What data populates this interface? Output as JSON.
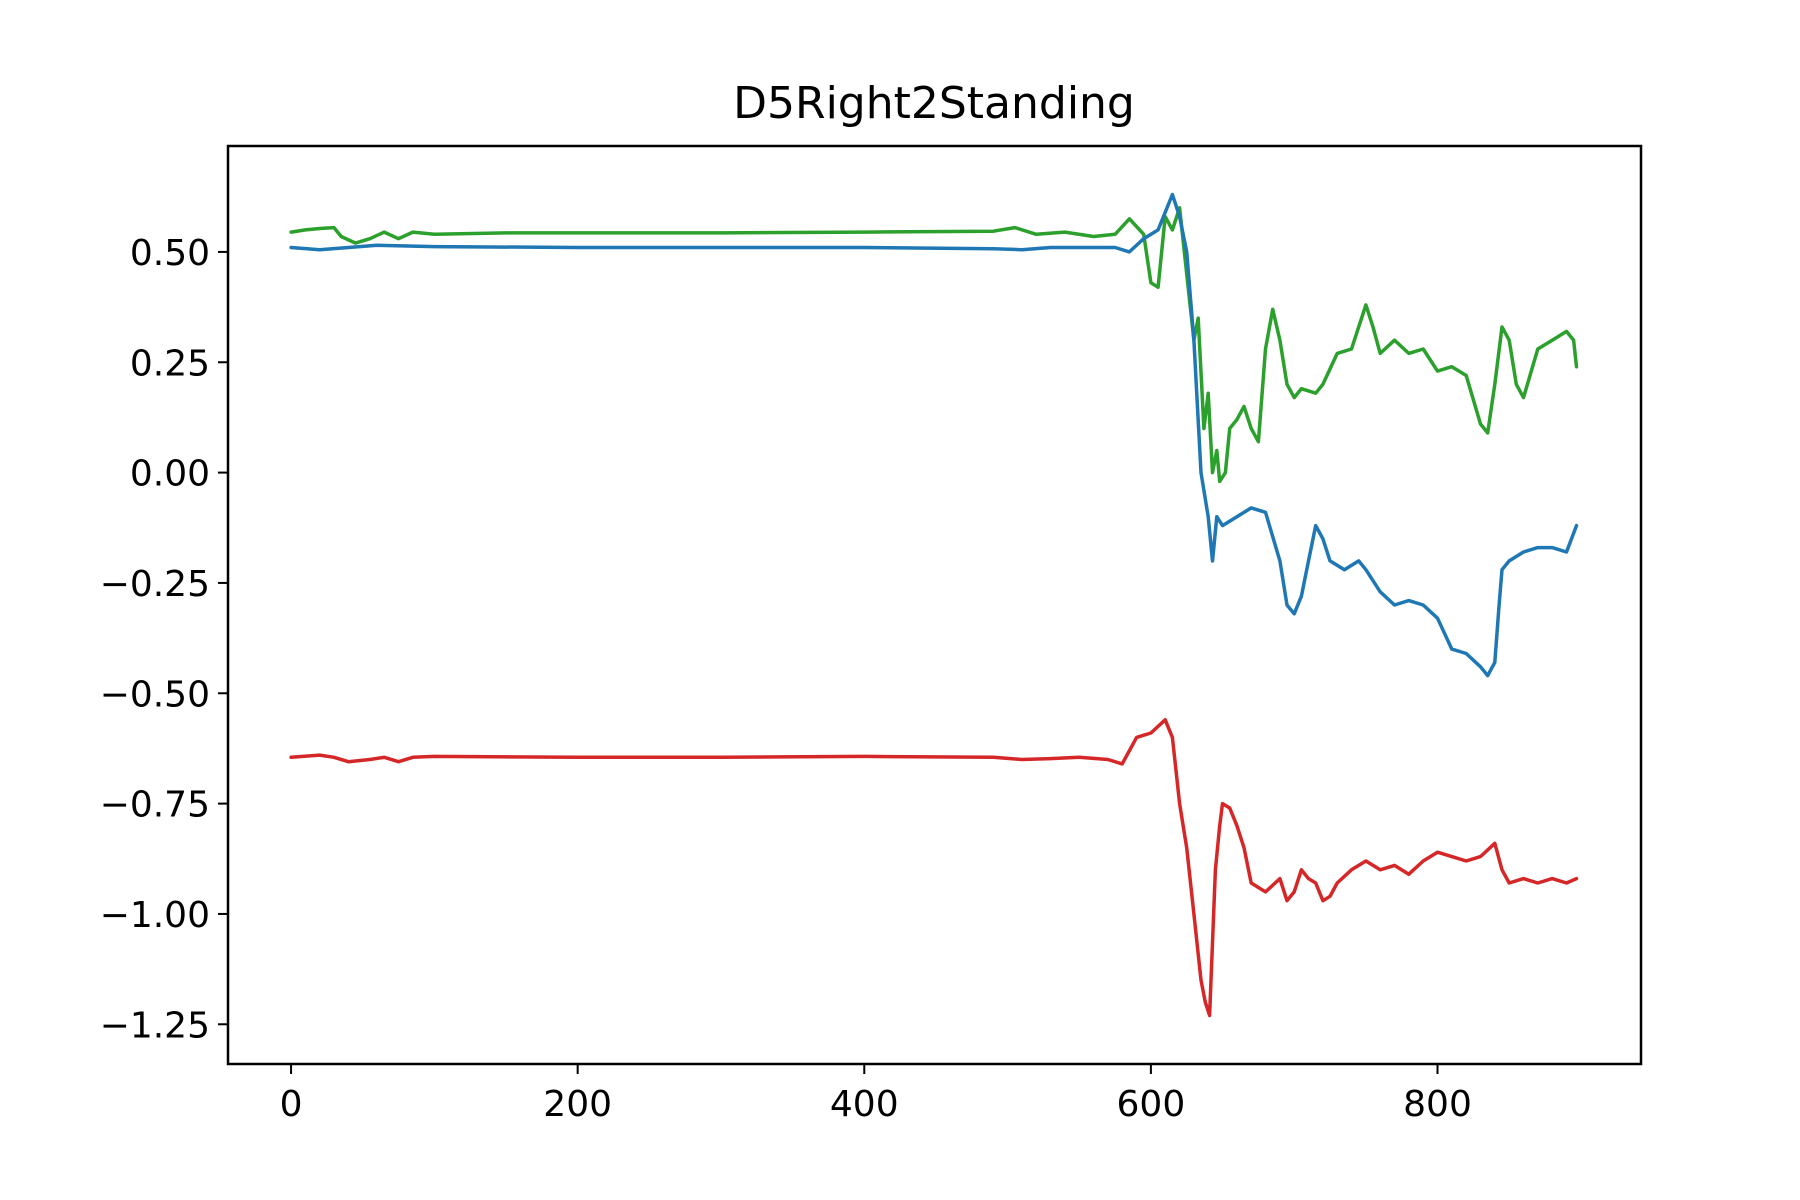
{
  "chart_data": {
    "type": "line",
    "title": "D5Right2Standing",
    "xlabel": "",
    "ylabel": "",
    "xlim": [
      -44,
      942
    ],
    "ylim": [
      -1.34,
      0.74
    ],
    "grid": false,
    "legend": "none",
    "x_ticks": [
      0,
      200,
      400,
      600,
      800
    ],
    "x_tick_labels": [
      "0",
      "200",
      "400",
      "600",
      "800"
    ],
    "y_ticks": [
      0.5,
      0.25,
      0.0,
      -0.25,
      -0.5,
      -0.75,
      -1.0,
      -1.25
    ],
    "y_tick_labels": [
      "0.50",
      "0.25",
      "0.00",
      "−0.25",
      "−0.50",
      "−0.75",
      "−1.00",
      "−1.25"
    ],
    "series": [
      {
        "color": "#2ca02c",
        "points": [
          [
            0,
            0.545
          ],
          [
            10,
            0.55
          ],
          [
            20,
            0.553
          ],
          [
            30,
            0.555
          ],
          [
            35,
            0.535
          ],
          [
            45,
            0.52
          ],
          [
            55,
            0.53
          ],
          [
            65,
            0.545
          ],
          [
            75,
            0.53
          ],
          [
            85,
            0.545
          ],
          [
            100,
            0.54
          ],
          [
            150,
            0.543
          ],
          [
            200,
            0.543
          ],
          [
            300,
            0.543
          ],
          [
            400,
            0.545
          ],
          [
            490,
            0.547
          ],
          [
            505,
            0.555
          ],
          [
            520,
            0.54
          ],
          [
            540,
            0.545
          ],
          [
            560,
            0.535
          ],
          [
            575,
            0.54
          ],
          [
            585,
            0.575
          ],
          [
            595,
            0.54
          ],
          [
            600,
            0.43
          ],
          [
            605,
            0.42
          ],
          [
            610,
            0.58
          ],
          [
            615,
            0.55
          ],
          [
            620,
            0.6
          ],
          [
            625,
            0.45
          ],
          [
            630,
            0.3
          ],
          [
            633,
            0.35
          ],
          [
            637,
            0.1
          ],
          [
            640,
            0.18
          ],
          [
            643,
            0.0
          ],
          [
            646,
            0.05
          ],
          [
            648,
            -0.02
          ],
          [
            652,
            0.0
          ],
          [
            655,
            0.1
          ],
          [
            660,
            0.12
          ],
          [
            665,
            0.15
          ],
          [
            670,
            0.1
          ],
          [
            675,
            0.07
          ],
          [
            680,
            0.28
          ],
          [
            685,
            0.37
          ],
          [
            690,
            0.3
          ],
          [
            695,
            0.2
          ],
          [
            700,
            0.17
          ],
          [
            705,
            0.19
          ],
          [
            715,
            0.18
          ],
          [
            720,
            0.2
          ],
          [
            730,
            0.27
          ],
          [
            740,
            0.28
          ],
          [
            750,
            0.38
          ],
          [
            755,
            0.33
          ],
          [
            760,
            0.27
          ],
          [
            770,
            0.3
          ],
          [
            780,
            0.27
          ],
          [
            790,
            0.28
          ],
          [
            800,
            0.23
          ],
          [
            810,
            0.24
          ],
          [
            820,
            0.22
          ],
          [
            830,
            0.11
          ],
          [
            835,
            0.09
          ],
          [
            840,
            0.2
          ],
          [
            845,
            0.33
          ],
          [
            850,
            0.3
          ],
          [
            855,
            0.2
          ],
          [
            860,
            0.17
          ],
          [
            870,
            0.28
          ],
          [
            880,
            0.3
          ],
          [
            890,
            0.32
          ],
          [
            895,
            0.3
          ],
          [
            897,
            0.24
          ]
        ]
      },
      {
        "color": "#1f77b4",
        "points": [
          [
            0,
            0.51
          ],
          [
            20,
            0.505
          ],
          [
            40,
            0.51
          ],
          [
            60,
            0.515
          ],
          [
            100,
            0.512
          ],
          [
            200,
            0.51
          ],
          [
            300,
            0.51
          ],
          [
            400,
            0.51
          ],
          [
            490,
            0.507
          ],
          [
            510,
            0.505
          ],
          [
            530,
            0.51
          ],
          [
            550,
            0.51
          ],
          [
            575,
            0.51
          ],
          [
            585,
            0.5
          ],
          [
            595,
            0.53
          ],
          [
            605,
            0.55
          ],
          [
            615,
            0.63
          ],
          [
            620,
            0.58
          ],
          [
            625,
            0.5
          ],
          [
            630,
            0.3
          ],
          [
            635,
            0.0
          ],
          [
            640,
            -0.1
          ],
          [
            643,
            -0.2
          ],
          [
            646,
            -0.1
          ],
          [
            650,
            -0.12
          ],
          [
            660,
            -0.1
          ],
          [
            670,
            -0.08
          ],
          [
            680,
            -0.09
          ],
          [
            690,
            -0.2
          ],
          [
            695,
            -0.3
          ],
          [
            700,
            -0.32
          ],
          [
            705,
            -0.28
          ],
          [
            710,
            -0.2
          ],
          [
            715,
            -0.12
          ],
          [
            720,
            -0.15
          ],
          [
            725,
            -0.2
          ],
          [
            735,
            -0.22
          ],
          [
            745,
            -0.2
          ],
          [
            750,
            -0.22
          ],
          [
            760,
            -0.27
          ],
          [
            770,
            -0.3
          ],
          [
            780,
            -0.29
          ],
          [
            790,
            -0.3
          ],
          [
            800,
            -0.33
          ],
          [
            810,
            -0.4
          ],
          [
            820,
            -0.41
          ],
          [
            830,
            -0.44
          ],
          [
            835,
            -0.46
          ],
          [
            840,
            -0.43
          ],
          [
            843,
            -0.3
          ],
          [
            845,
            -0.22
          ],
          [
            850,
            -0.2
          ],
          [
            860,
            -0.18
          ],
          [
            870,
            -0.17
          ],
          [
            880,
            -0.17
          ],
          [
            890,
            -0.18
          ],
          [
            897,
            -0.12
          ]
        ]
      },
      {
        "color": "#d62728",
        "points": [
          [
            0,
            -0.645
          ],
          [
            20,
            -0.64
          ],
          [
            30,
            -0.645
          ],
          [
            40,
            -0.655
          ],
          [
            55,
            -0.65
          ],
          [
            65,
            -0.645
          ],
          [
            75,
            -0.655
          ],
          [
            85,
            -0.645
          ],
          [
            100,
            -0.643
          ],
          [
            200,
            -0.645
          ],
          [
            300,
            -0.645
          ],
          [
            400,
            -0.643
          ],
          [
            490,
            -0.645
          ],
          [
            510,
            -0.65
          ],
          [
            530,
            -0.648
          ],
          [
            550,
            -0.645
          ],
          [
            570,
            -0.65
          ],
          [
            580,
            -0.66
          ],
          [
            590,
            -0.6
          ],
          [
            600,
            -0.59
          ],
          [
            610,
            -0.56
          ],
          [
            615,
            -0.6
          ],
          [
            620,
            -0.75
          ],
          [
            625,
            -0.85
          ],
          [
            630,
            -1.0
          ],
          [
            635,
            -1.15
          ],
          [
            638,
            -1.2
          ],
          [
            641,
            -1.23
          ],
          [
            645,
            -0.9
          ],
          [
            648,
            -0.8
          ],
          [
            650,
            -0.75
          ],
          [
            655,
            -0.76
          ],
          [
            660,
            -0.8
          ],
          [
            665,
            -0.85
          ],
          [
            670,
            -0.93
          ],
          [
            680,
            -0.95
          ],
          [
            690,
            -0.92
          ],
          [
            695,
            -0.97
          ],
          [
            700,
            -0.95
          ],
          [
            705,
            -0.9
          ],
          [
            710,
            -0.92
          ],
          [
            715,
            -0.93
          ],
          [
            720,
            -0.97
          ],
          [
            725,
            -0.96
          ],
          [
            730,
            -0.93
          ],
          [
            740,
            -0.9
          ],
          [
            750,
            -0.88
          ],
          [
            760,
            -0.9
          ],
          [
            770,
            -0.89
          ],
          [
            780,
            -0.91
          ],
          [
            790,
            -0.88
          ],
          [
            800,
            -0.86
          ],
          [
            810,
            -0.87
          ],
          [
            820,
            -0.88
          ],
          [
            830,
            -0.87
          ],
          [
            840,
            -0.84
          ],
          [
            845,
            -0.9
          ],
          [
            850,
            -0.93
          ],
          [
            860,
            -0.92
          ],
          [
            870,
            -0.93
          ],
          [
            880,
            -0.92
          ],
          [
            890,
            -0.93
          ],
          [
            897,
            -0.92
          ]
        ]
      }
    ]
  }
}
